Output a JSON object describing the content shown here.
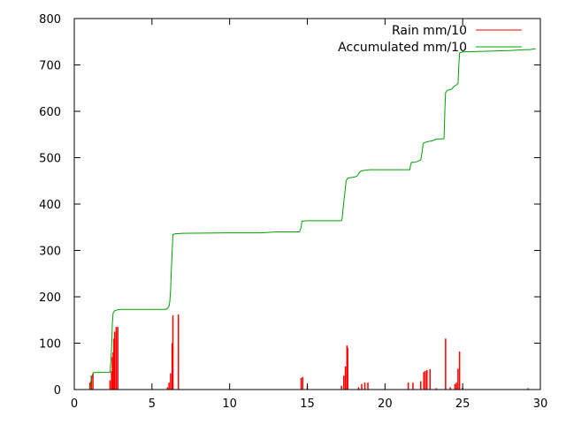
{
  "chart_data": {
    "type": "line",
    "title": "",
    "xlabel": "",
    "ylabel": "",
    "xlim": [
      0,
      30
    ],
    "ylim": [
      0,
      800
    ],
    "xticks": [
      0,
      5,
      10,
      15,
      20,
      25,
      30
    ],
    "yticks": [
      0,
      100,
      200,
      300,
      400,
      500,
      600,
      700,
      800
    ],
    "grid": false,
    "legend_position": "top-right",
    "series": [
      {
        "name": "Rain mm/10",
        "style": "impulses",
        "color": "#ff0000",
        "points": [
          [
            1.0,
            15
          ],
          [
            1.1,
            30
          ],
          [
            1.2,
            35
          ],
          [
            2.3,
            20
          ],
          [
            2.4,
            40
          ],
          [
            2.45,
            70
          ],
          [
            2.5,
            80
          ],
          [
            2.55,
            110
          ],
          [
            2.6,
            125
          ],
          [
            2.7,
            135
          ],
          [
            2.8,
            135
          ],
          [
            6.0,
            5
          ],
          [
            6.1,
            15
          ],
          [
            6.2,
            35
          ],
          [
            6.3,
            100
          ],
          [
            6.35,
            160
          ],
          [
            6.7,
            162
          ],
          [
            14.6,
            25
          ],
          [
            14.7,
            27
          ],
          [
            15.0,
            8
          ],
          [
            17.2,
            8
          ],
          [
            17.35,
            30
          ],
          [
            17.45,
            50
          ],
          [
            17.55,
            95
          ],
          [
            17.6,
            90
          ],
          [
            18.3,
            5
          ],
          [
            18.5,
            12
          ],
          [
            18.7,
            15
          ],
          [
            18.9,
            15
          ],
          [
            21.5,
            15
          ],
          [
            21.8,
            15
          ],
          [
            22.3,
            18
          ],
          [
            22.5,
            38
          ],
          [
            22.6,
            40
          ],
          [
            22.7,
            42
          ],
          [
            22.9,
            44
          ],
          [
            23.3,
            3
          ],
          [
            23.9,
            110
          ],
          [
            24.2,
            5
          ],
          [
            24.5,
            12
          ],
          [
            24.6,
            15
          ],
          [
            24.7,
            45
          ],
          [
            24.8,
            82
          ],
          [
            25.0,
            4
          ],
          [
            29.2,
            3
          ]
        ]
      },
      {
        "name": "Accumulated mm/10",
        "style": "lines",
        "color": "#00a000",
        "points": [
          [
            1.0,
            0
          ],
          [
            1.05,
            15
          ],
          [
            1.15,
            30
          ],
          [
            1.25,
            37
          ],
          [
            2.3,
            37
          ],
          [
            2.35,
            60
          ],
          [
            2.4,
            90
          ],
          [
            2.45,
            140
          ],
          [
            2.5,
            165
          ],
          [
            2.6,
            170
          ],
          [
            2.8,
            172
          ],
          [
            3.0,
            173
          ],
          [
            5.9,
            173
          ],
          [
            6.0,
            175
          ],
          [
            6.1,
            180
          ],
          [
            6.15,
            190
          ],
          [
            6.2,
            215
          ],
          [
            6.25,
            260
          ],
          [
            6.3,
            300
          ],
          [
            6.35,
            334
          ],
          [
            6.5,
            336
          ],
          [
            7.0,
            337
          ],
          [
            10.0,
            338
          ],
          [
            12.0,
            338
          ],
          [
            13.0,
            340
          ],
          [
            14.5,
            340
          ],
          [
            14.6,
            350
          ],
          [
            14.65,
            363
          ],
          [
            15.0,
            364
          ],
          [
            16.0,
            364
          ],
          [
            17.2,
            364
          ],
          [
            17.25,
            370
          ],
          [
            17.3,
            390
          ],
          [
            17.4,
            420
          ],
          [
            17.5,
            450
          ],
          [
            17.6,
            456
          ],
          [
            18.0,
            458
          ],
          [
            18.2,
            460
          ],
          [
            18.35,
            468
          ],
          [
            18.5,
            472
          ],
          [
            19.0,
            474
          ],
          [
            20.0,
            474
          ],
          [
            21.6,
            474
          ],
          [
            21.65,
            485
          ],
          [
            21.7,
            490
          ],
          [
            21.9,
            490
          ],
          [
            22.1,
            492
          ],
          [
            22.3,
            495
          ],
          [
            22.35,
            505
          ],
          [
            22.4,
            515
          ],
          [
            22.45,
            530
          ],
          [
            22.5,
            532
          ],
          [
            22.8,
            535
          ],
          [
            23.0,
            536
          ],
          [
            23.3,
            540
          ],
          [
            23.8,
            541
          ],
          [
            23.85,
            600
          ],
          [
            23.9,
            640
          ],
          [
            24.0,
            645
          ],
          [
            24.3,
            648
          ],
          [
            24.4,
            652
          ],
          [
            24.5,
            655
          ],
          [
            24.6,
            657
          ],
          [
            24.7,
            660
          ],
          [
            24.75,
            700
          ],
          [
            24.8,
            726
          ],
          [
            25.0,
            728
          ],
          [
            26.0,
            729
          ],
          [
            27.0,
            730
          ],
          [
            28.0,
            731
          ],
          [
            29.0,
            733
          ],
          [
            29.3,
            733
          ],
          [
            29.7,
            735
          ]
        ]
      }
    ]
  }
}
